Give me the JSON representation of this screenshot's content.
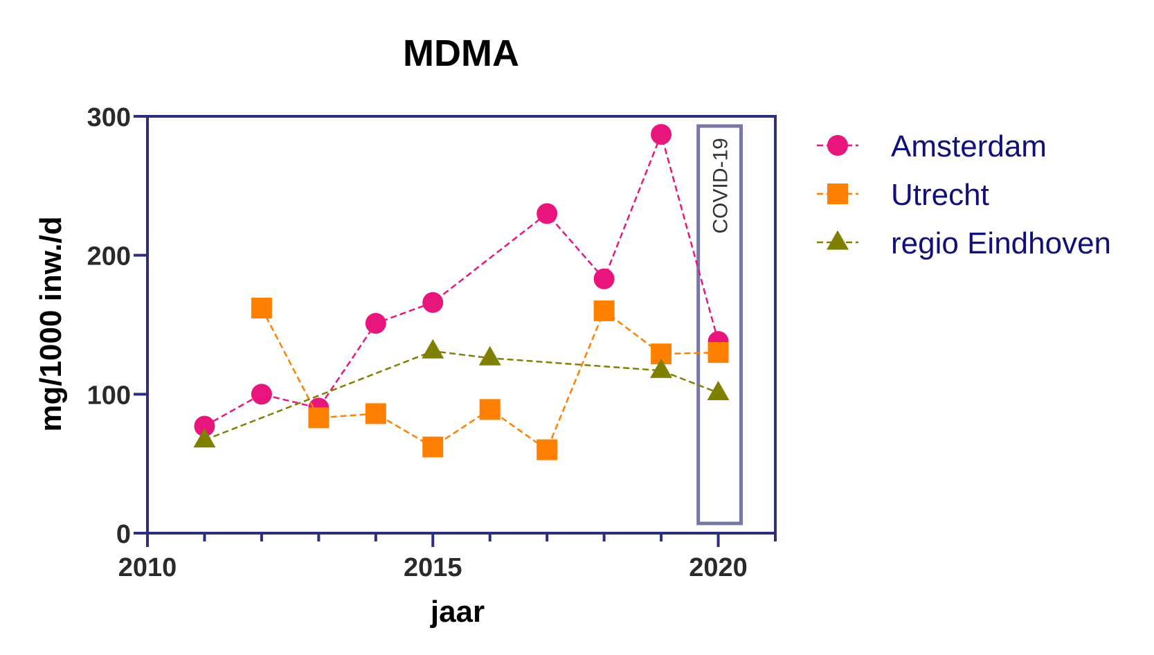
{
  "chart_data": {
    "type": "line",
    "title": "MDMA",
    "xlabel": "jaar",
    "ylabel": "mg/1000 inw./d",
    "xlim": [
      2010,
      2021
    ],
    "ylim": [
      0,
      300
    ],
    "xticks": [
      2010,
      2015,
      2020
    ],
    "xminor_ticks": [
      2011,
      2012,
      2013,
      2014,
      2016,
      2017,
      2018,
      2019,
      2021
    ],
    "yticks": [
      0,
      100,
      200,
      300
    ],
    "legend_position": "right",
    "series": [
      {
        "name": "Amsterdam",
        "marker": "circle",
        "color": "#e8157c",
        "x": [
          2011,
          2012,
          2013,
          2014,
          2015,
          2017,
          2018,
          2019,
          2020
        ],
        "y": [
          77,
          100,
          90,
          151,
          166,
          230,
          183,
          287,
          138
        ]
      },
      {
        "name": "Utrecht",
        "marker": "square",
        "color": "#ff8000",
        "x": [
          2012,
          2013,
          2014,
          2015,
          2016,
          2017,
          2018,
          2019,
          2020
        ],
        "y": [
          162,
          83,
          86,
          62,
          89,
          60,
          160,
          129,
          130
        ]
      },
      {
        "name": "regio Eindhoven",
        "marker": "triangle",
        "color": "#808000",
        "x": [
          2011,
          2015,
          2016,
          2019,
          2020
        ],
        "y": [
          67,
          131,
          126,
          117,
          101
        ]
      }
    ],
    "annotations": [
      {
        "text": "COVID-19",
        "x_range": [
          2019.65,
          2020.4
        ],
        "y_range": [
          7,
          293
        ],
        "color": "#7777a6"
      }
    ],
    "axis_color": "#2e2e7e"
  }
}
